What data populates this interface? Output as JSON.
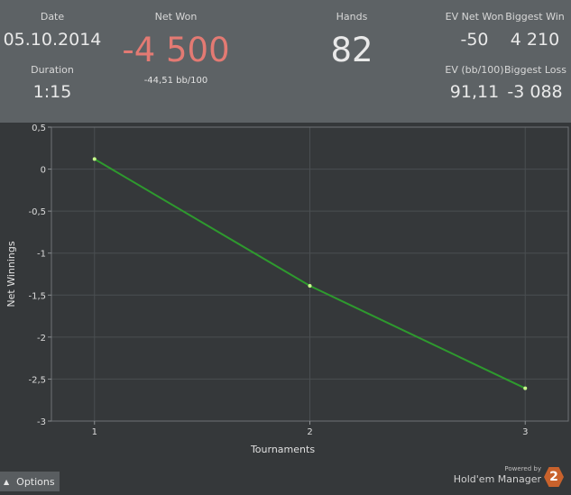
{
  "stats": {
    "date": {
      "label": "Date",
      "value": "05.10.2014"
    },
    "duration": {
      "label": "Duration",
      "value": "1:15"
    },
    "net_won": {
      "label": "Net Won",
      "value": "-4 500",
      "sub": "-44,51 bb/100"
    },
    "hands": {
      "label": "Hands",
      "value": "82"
    },
    "ev_net_won": {
      "label": "EV Net Won",
      "value": "-50"
    },
    "biggest_win": {
      "label": "Biggest Win",
      "value": "4 210"
    },
    "ev_bb100": {
      "label": "EV (bb/100)",
      "value": "91,11"
    },
    "biggest_loss": {
      "label": "Biggest Loss",
      "value": "-3 088"
    }
  },
  "colors": {
    "net_won_negative": "#e37a73",
    "series_line": "#2e9a2e",
    "point": "#c8ff8c"
  },
  "chart_data": {
    "type": "line",
    "xlabel": "Tournaments",
    "ylabel": "Net Winnings",
    "x": [
      1,
      2,
      3
    ],
    "x_ticks": [
      "1",
      "2",
      "3"
    ],
    "xlim": [
      0.8,
      3.2
    ],
    "ylim": [
      -3,
      0.5
    ],
    "y_ticks": [
      "0,5",
      "0",
      "-0,5",
      "-1",
      "-1,5",
      "-2",
      "-2,5",
      "-3"
    ],
    "series": [
      {
        "values": [
          0.12,
          -1.39,
          -2.61
        ]
      }
    ],
    "grid": true
  },
  "options": {
    "label": "Options",
    "icon": "caret-up-icon"
  },
  "branding": {
    "powered_by": "Powered by",
    "product": "Hold'em Manager",
    "logo_text": "2"
  }
}
